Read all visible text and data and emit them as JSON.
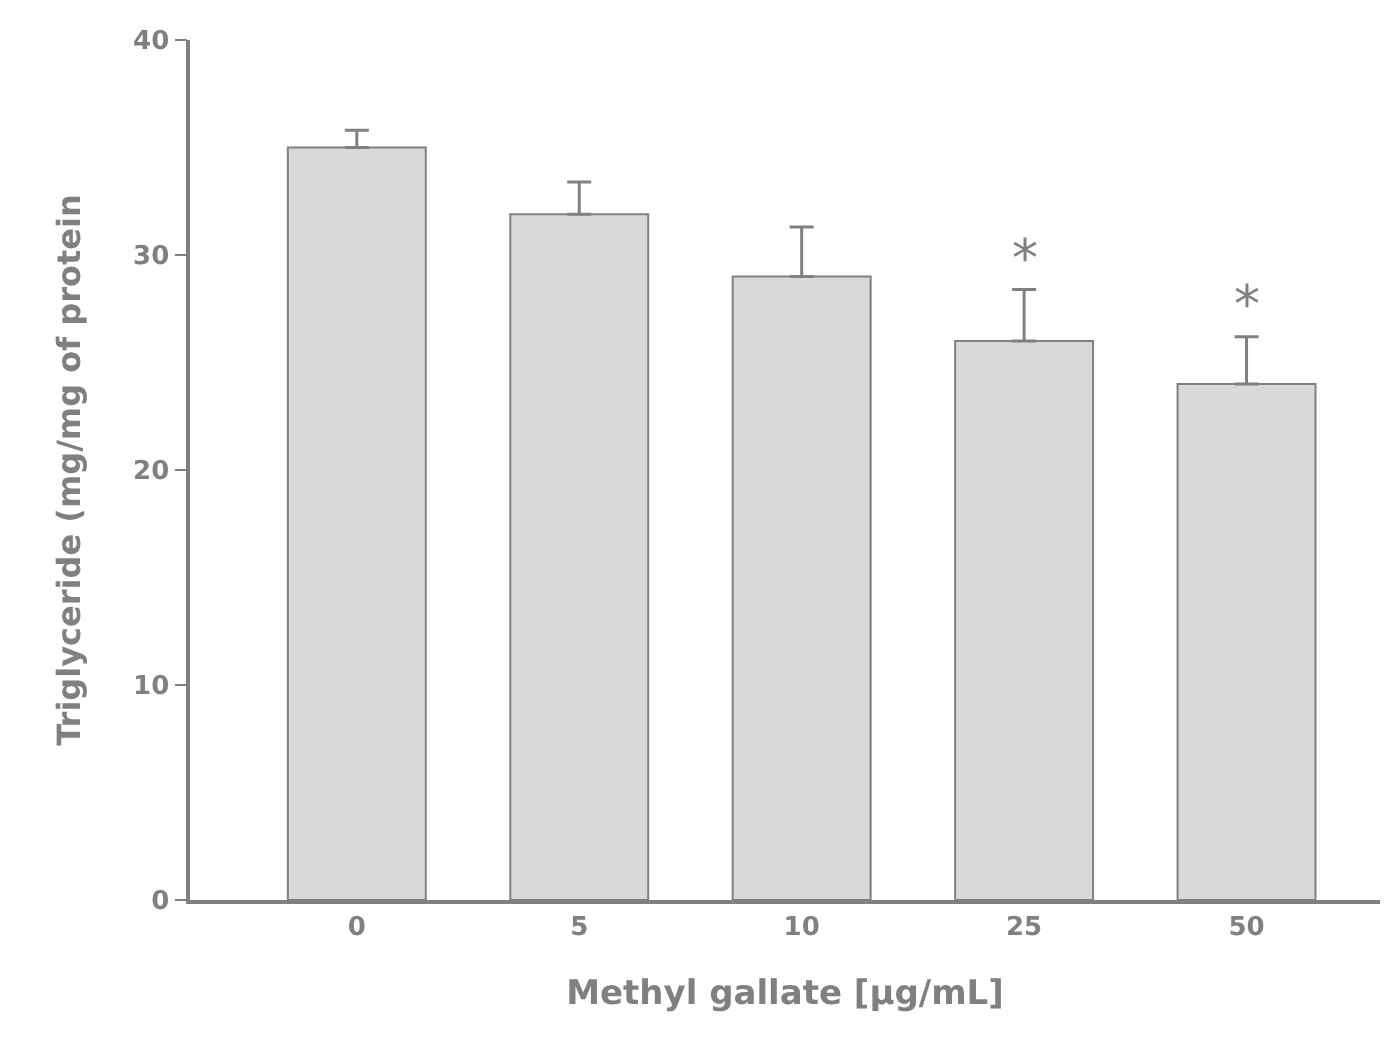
{
  "chart_data": {
    "type": "bar",
    "xlabel": "Methyl gallate [µg/mL]",
    "ylabel": "Triglyceride (mg/mg of protein",
    "categories": [
      "0",
      "5",
      "10",
      "25",
      "50"
    ],
    "values": [
      35.0,
      31.9,
      29.0,
      26.0,
      24.0
    ],
    "errors": [
      [
        35.0,
        35.8
      ],
      [
        31.9,
        33.4
      ],
      [
        29.0,
        31.3
      ],
      [
        26.0,
        28.4
      ],
      [
        24.0,
        26.2
      ]
    ],
    "color": "#d9d9d9",
    "ylim": [
      0,
      40
    ],
    "yticks": [
      0,
      10,
      20,
      30,
      40
    ],
    "annotations": [
      {
        "text": "*",
        "x": "25",
        "y": 28.4
      },
      {
        "text": "*",
        "x": "50",
        "y": 26.2
      }
    ]
  }
}
